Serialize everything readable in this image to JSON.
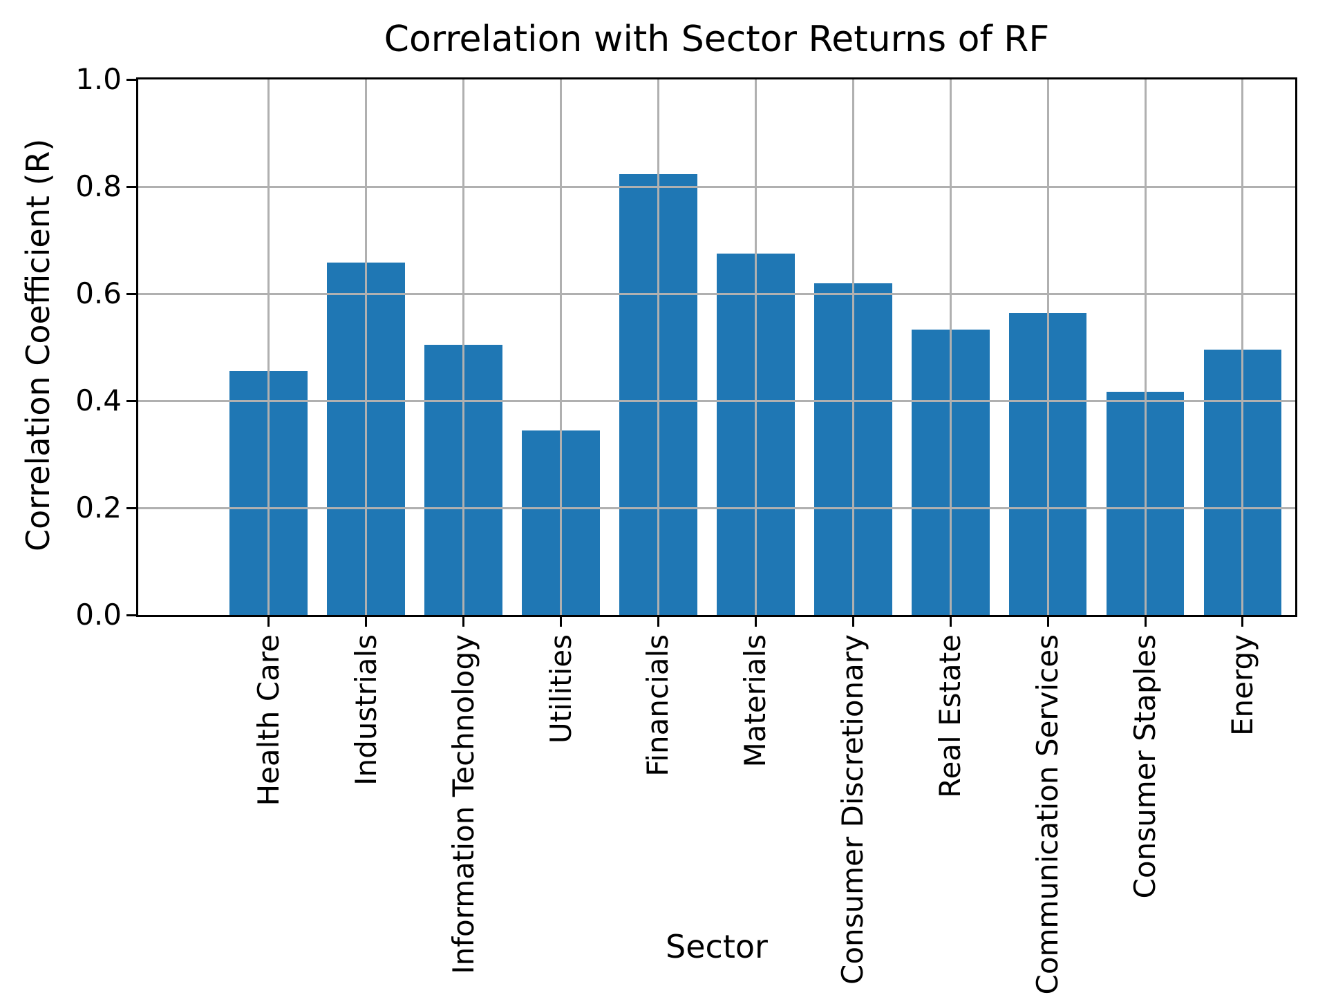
{
  "chart_data": {
    "type": "bar",
    "title": "Correlation with Sector Returns of RF",
    "xlabel": "Sector",
    "ylabel": "Correlation Coefficient (R)",
    "categories": [
      "Health Care",
      "Industrials",
      "Information Technology",
      "Utilities",
      "Financials",
      "Materials",
      "Consumer Discretionary",
      "Real Estate",
      "Communication Services",
      "Consumer Staples",
      "Energy"
    ],
    "values": [
      0.455,
      0.658,
      0.505,
      0.345,
      0.823,
      0.675,
      0.62,
      0.533,
      0.564,
      0.417,
      0.496
    ],
    "ylim": [
      0.0,
      1.0
    ],
    "yticks": [
      0.0,
      0.2,
      0.4,
      0.6,
      0.8,
      1.0
    ],
    "ytick_label_format": "one_decimal",
    "xtick_label_rotation": 90,
    "grid": true,
    "grid_position": "above-bars",
    "legend": "none",
    "bar_color": "#1f77b4",
    "grid_color": "#b0b0b0",
    "spine_color": "#000000",
    "background_color": "#ffffff"
  }
}
